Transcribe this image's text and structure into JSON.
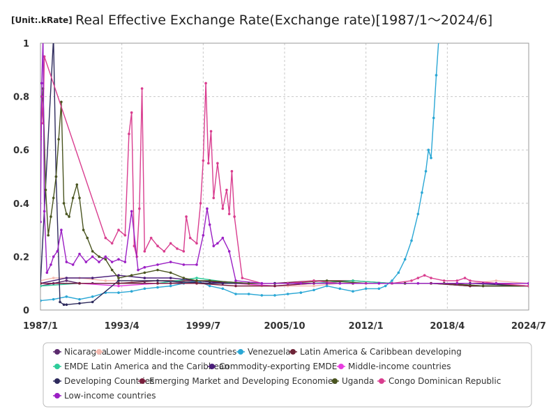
{
  "chart_data": {
    "type": "line",
    "unit_label": "[Unit:.kRate]",
    "title": "Real Effective Exchange Rate(Exchange rate)[1987/1～2024/6]",
    "xlabel": "",
    "ylabel": "",
    "xlim": [
      1987.0,
      2024.5
    ],
    "ylim": [
      0,
      1
    ],
    "x_ticks": [
      {
        "label": "1987/1",
        "value": 1987.0
      },
      {
        "label": "1993/4",
        "value": 1993.25
      },
      {
        "label": "1999/7",
        "value": 1999.5
      },
      {
        "label": "2005/10",
        "value": 2005.75
      },
      {
        "label": "2012/1",
        "value": 2012.0
      },
      {
        "label": "2018/4",
        "value": 2018.25
      },
      {
        "label": "2024/7",
        "value": 2024.5
      }
    ],
    "y_ticks": [
      {
        "label": "0",
        "value": 0
      },
      {
        "label": "0.2",
        "value": 0.2
      },
      {
        "label": "0.4",
        "value": 0.4
      },
      {
        "label": "0.6",
        "value": 0.6
      },
      {
        "label": "0.8",
        "value": 0.8
      },
      {
        "label": "1",
        "value": 1
      }
    ],
    "grid": true,
    "legend_position": "bottom",
    "series": [
      {
        "name": "Nicaragua",
        "color": "#5b2a6e",
        "x": [
          1987.0,
          1988.0,
          1989.0,
          1990.0,
          1991.0,
          1993.0,
          1995.0,
          1997.0,
          2000.0,
          2003.0,
          2006.0,
          2009.0,
          2012.0,
          2015.0,
          2018.0,
          2021.0,
          2024.5
        ],
        "y": [
          0.09,
          0.1,
          0.11,
          0.1,
          0.1,
          0.1,
          0.1,
          0.1,
          0.11,
          0.1,
          0.1,
          0.1,
          0.1,
          0.1,
          0.1,
          0.09,
          0.09
        ]
      },
      {
        "name": "Lower Middle-income countries",
        "color": "#f4b9b0",
        "x": [
          1987.0,
          1988.0,
          1990.0,
          1992.0,
          1994.0,
          1996.0,
          1998.0,
          2000.0,
          2002.0,
          2004.0,
          2006.0,
          2008.0,
          2010.0,
          2012.0,
          2014.0,
          2016.0,
          2018.0,
          2020.0,
          2022.0,
          2024.5
        ],
        "y": [
          0.11,
          0.12,
          0.12,
          0.11,
          0.11,
          0.11,
          0.11,
          0.11,
          0.1,
          0.09,
          0.09,
          0.09,
          0.1,
          0.1,
          0.1,
          0.1,
          0.1,
          0.1,
          0.11,
          0.1
        ]
      },
      {
        "name": "Venezuela",
        "color": "#2aa7d5",
        "x": [
          1987.0,
          1988.0,
          1989.0,
          1990.0,
          1991.0,
          1992.0,
          1993.0,
          1994.0,
          1995.0,
          1996.0,
          1997.0,
          1998.0,
          1999.0,
          2000.0,
          2001.0,
          2002.0,
          2003.0,
          2004.0,
          2005.0,
          2006.0,
          2007.0,
          2008.0,
          2009.0,
          2010.0,
          2011.0,
          2012.0,
          2013.0,
          2013.5,
          2014.0,
          2014.5,
          2015.0,
          2015.5,
          2016.0,
          2016.3,
          2016.6,
          2016.8,
          2017.0,
          2017.2,
          2017.4,
          2017.6
        ],
        "y": [
          0.035,
          0.04,
          0.05,
          0.04,
          0.05,
          0.065,
          0.065,
          0.07,
          0.08,
          0.085,
          0.09,
          0.1,
          0.11,
          0.09,
          0.08,
          0.06,
          0.06,
          0.055,
          0.055,
          0.06,
          0.065,
          0.075,
          0.09,
          0.08,
          0.07,
          0.08,
          0.08,
          0.09,
          0.11,
          0.14,
          0.19,
          0.26,
          0.36,
          0.44,
          0.52,
          0.6,
          0.57,
          0.72,
          0.88,
          1.02
        ]
      },
      {
        "name": "Latin America & Caribbean developing",
        "color": "#6e2438",
        "x": [
          1987.0,
          1990.0,
          1993.0,
          1996.0,
          1999.0,
          2002.0,
          2005.0,
          2008.0,
          2011.0,
          2014.0,
          2017.0,
          2020.0,
          2024.5
        ],
        "y": [
          0.1,
          0.1,
          0.1,
          0.11,
          0.11,
          0.1,
          0.1,
          0.11,
          0.11,
          0.1,
          0.1,
          0.09,
          0.09
        ]
      },
      {
        "name": "EMDE Latin America and the Caribbean",
        "color": "#2ecc9a",
        "x": [
          1987.0,
          1990.0,
          1993.0,
          1996.0,
          1999.0,
          2002.0,
          2005.0,
          2008.0,
          2011.0,
          2014.0,
          2017.0,
          2020.0,
          2024.5
        ],
        "y": [
          0.09,
          0.1,
          0.1,
          0.1,
          0.12,
          0.1,
          0.1,
          0.1,
          0.11,
          0.1,
          0.1,
          0.09,
          0.09
        ]
      },
      {
        "name": "Commodity-exporting EMDE",
        "color": "#4b1f7a",
        "x": [
          1987.0,
          1989.0,
          1991.0,
          1993.0,
          1995.0,
          1997.0,
          1999.0,
          2001.0,
          2003.0,
          2005.0,
          2007.0,
          2009.0,
          2011.0,
          2013.0,
          2015.0,
          2017.0,
          2019.0,
          2021.0,
          2024.5
        ],
        "y": [
          0.1,
          0.12,
          0.12,
          0.13,
          0.12,
          0.12,
          0.11,
          0.1,
          0.1,
          0.1,
          0.1,
          0.1,
          0.1,
          0.1,
          0.1,
          0.1,
          0.1,
          0.1,
          0.09
        ]
      },
      {
        "name": "Middle-income countries",
        "color": "#e83de0",
        "x": [
          1987.0,
          1990.0,
          1993.0,
          1996.0,
          1999.0,
          2002.0,
          2005.0,
          2008.0,
          2011.0,
          2014.0,
          2017.0,
          2020.0,
          2024.5
        ],
        "y": [
          0.1,
          0.1,
          0.09,
          0.1,
          0.1,
          0.1,
          0.09,
          0.1,
          0.1,
          0.1,
          0.1,
          0.1,
          0.1
        ]
      },
      {
        "name": "Developing Countries",
        "color": "#2d2a5c",
        "x": [
          1987.0,
          1988.0,
          1988.2,
          1988.5,
          1988.8,
          1989.0,
          1990.0,
          1991.0,
          1993.0,
          1996.0,
          2000.0,
          2005.0,
          2010.0,
          2015.0,
          2020.0,
          2024.5
        ],
        "y": [
          0.1,
          1.02,
          0.5,
          0.03,
          0.02,
          0.02,
          0.025,
          0.03,
          0.11,
          0.11,
          0.1,
          0.1,
          0.1,
          0.1,
          0.1,
          0.09
        ]
      },
      {
        "name": "Emerging Market and Developing Economies",
        "color": "#7a1f3d",
        "x": [
          1987.0,
          1990.0,
          1993.0,
          1996.0,
          1999.0,
          2002.0,
          2005.0,
          2008.0,
          2011.0,
          2014.0,
          2017.0,
          2020.0,
          2024.5
        ],
        "y": [
          0.1,
          0.1,
          0.1,
          0.1,
          0.1,
          0.09,
          0.09,
          0.1,
          0.1,
          0.1,
          0.1,
          0.09,
          0.09
        ]
      },
      {
        "name": "Uganda",
        "color": "#4a5520",
        "x": [
          1987.0,
          1987.2,
          1987.4,
          1987.6,
          1987.8,
          1988.0,
          1988.2,
          1988.4,
          1988.6,
          1988.8,
          1989.0,
          1989.2,
          1989.5,
          1989.8,
          1990.0,
          1990.3,
          1990.6,
          1991.0,
          1991.5,
          1992.0,
          1992.5,
          1993.0,
          1994.0,
          1995.0,
          1996.0,
          1997.0,
          1998.0,
          1999.0,
          2000.0,
          2003.0,
          2006.0,
          2009.0,
          2012.0,
          2015.0,
          2018.0,
          2021.0,
          2024.5
        ],
        "y": [
          0.65,
          0.83,
          0.45,
          0.28,
          0.35,
          0.42,
          0.5,
          0.64,
          0.78,
          0.4,
          0.36,
          0.35,
          0.42,
          0.47,
          0.42,
          0.3,
          0.27,
          0.22,
          0.2,
          0.19,
          0.15,
          0.12,
          0.13,
          0.14,
          0.15,
          0.14,
          0.12,
          0.11,
          0.11,
          0.1,
          0.1,
          0.11,
          0.1,
          0.1,
          0.1,
          0.09,
          0.09
        ]
      },
      {
        "name": "Congo Dominican Republic",
        "color": "#d93d8f",
        "x": [
          1987.0,
          1987.1,
          1987.2,
          1987.3,
          1992.0,
          1992.5,
          1993.0,
          1993.5,
          1993.8,
          1994.0,
          1994.2,
          1994.4,
          1994.6,
          1994.8,
          1995.0,
          1995.5,
          1996.0,
          1996.5,
          1997.0,
          1997.5,
          1998.0,
          1998.2,
          1998.5,
          1999.0,
          1999.3,
          1999.5,
          1999.7,
          1999.9,
          2000.1,
          2000.3,
          2000.6,
          2001.0,
          2001.3,
          2001.5,
          2001.7,
          2001.9,
          2002.5,
          2004.0,
          2006.0,
          2008.0,
          2010.0,
          2012.0,
          2014.0,
          2015.5,
          2016.0,
          2016.5,
          2017.0,
          2018.0,
          2019.0,
          2019.6,
          2020.0,
          2022.0,
          2024.5
        ],
        "y": [
          0.64,
          0.8,
          0.7,
          0.95,
          0.27,
          0.25,
          0.3,
          0.28,
          0.66,
          0.74,
          0.24,
          0.2,
          0.38,
          0.83,
          0.22,
          0.27,
          0.24,
          0.22,
          0.25,
          0.23,
          0.22,
          0.35,
          0.27,
          0.25,
          0.4,
          0.56,
          0.85,
          0.55,
          0.67,
          0.42,
          0.55,
          0.38,
          0.45,
          0.36,
          0.52,
          0.35,
          0.12,
          0.1,
          0.1,
          0.11,
          0.1,
          0.1,
          0.1,
          0.11,
          0.12,
          0.13,
          0.12,
          0.11,
          0.11,
          0.12,
          0.11,
          0.1,
          0.09
        ]
      },
      {
        "name": "Low-income countries",
        "color": "#9b1fc4",
        "x": [
          1987.0,
          1987.1,
          1987.2,
          1987.3,
          1987.5,
          1987.8,
          1988.0,
          1988.3,
          1988.6,
          1989.0,
          1989.5,
          1990.0,
          1990.5,
          1991.0,
          1991.5,
          1992.0,
          1992.5,
          1993.0,
          1993.5,
          1994.0,
          1994.5,
          1995.0,
          1996.0,
          1997.0,
          1998.0,
          1999.0,
          1999.5,
          1999.8,
          2000.0,
          2000.3,
          2000.6,
          2001.0,
          2001.5,
          2002.0,
          2004.0,
          2007.0,
          2010.0,
          2013.0,
          2016.0,
          2019.0,
          2022.0,
          2024.5
        ],
        "y": [
          0.33,
          0.85,
          1.02,
          0.37,
          0.14,
          0.17,
          0.2,
          0.22,
          0.3,
          0.18,
          0.17,
          0.21,
          0.18,
          0.2,
          0.18,
          0.2,
          0.18,
          0.19,
          0.18,
          0.37,
          0.15,
          0.16,
          0.17,
          0.18,
          0.17,
          0.17,
          0.28,
          0.38,
          0.32,
          0.24,
          0.25,
          0.27,
          0.22,
          0.11,
          0.1,
          0.1,
          0.1,
          0.1,
          0.1,
          0.1,
          0.1,
          0.1
        ]
      }
    ]
  }
}
